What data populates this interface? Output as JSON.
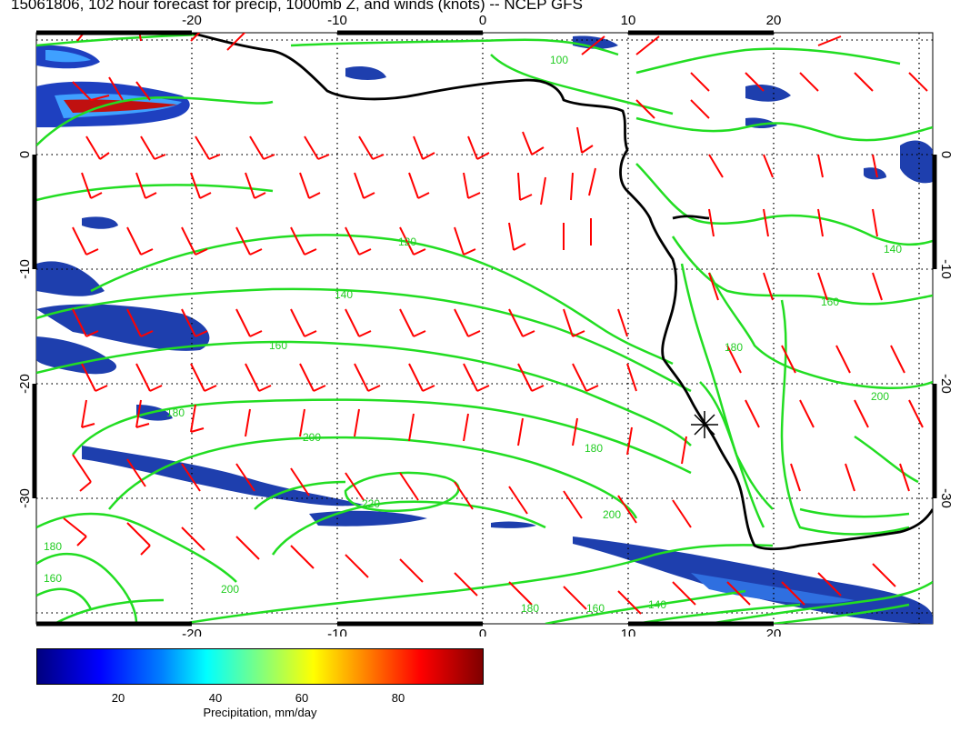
{
  "title": "15061806, 102 hour forecast for precip, 1000mb Z, and winds (knots) -- NCEP GFS",
  "map": {
    "lon_ticks": [
      "-20",
      "-10",
      "0",
      "10",
      "20"
    ],
    "lat_ticks": [
      "0",
      "-10",
      "-20",
      "-30"
    ],
    "contour_labels": [
      "100",
      "120",
      "140",
      "160",
      "180",
      "200",
      "220",
      "140",
      "160",
      "180",
      "200",
      "180",
      "200",
      "160",
      "140",
      "180",
      "160",
      "200",
      "180"
    ],
    "colors": {
      "contour": "#22dd22",
      "coast": "#000000",
      "wind_barb": "#ff0000",
      "precip_low": "#1a237e",
      "precip_mid": "#3366ff",
      "precip_high": "#cc0000"
    },
    "marker_icon": "asterisk-marker"
  },
  "colorbar": {
    "ticks": [
      "20",
      "40",
      "60",
      "80"
    ],
    "label": "Precipitation, mm/day"
  }
}
